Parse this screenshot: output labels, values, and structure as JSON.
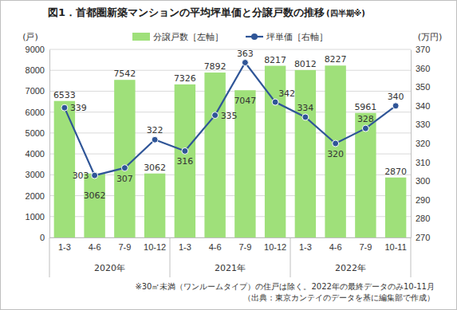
{
  "chart_data": {
    "type": "bar",
    "title": "図1．首都圏新築マンションの平均坪単価と分譲戸数の推移",
    "subtitle": "(四半期※)",
    "categories": [
      "1-3",
      "4-6",
      "7-9",
      "10-12",
      "1-3",
      "4-6",
      "7-9",
      "10-12",
      "1-3",
      "4-6",
      "7-9",
      "10-11"
    ],
    "x_groups": [
      "2020年",
      "2021年",
      "2022年"
    ],
    "ylabel": "(戸)",
    "y2label": "(万円)",
    "ylim": [
      0,
      9000
    ],
    "yticks": [
      0,
      1000,
      2000,
      3000,
      4000,
      5000,
      6000,
      7000,
      8000,
      9000
    ],
    "y2lim": [
      270,
      370
    ],
    "y2ticks": [
      270,
      280,
      290,
      300,
      310,
      320,
      330,
      340,
      350,
      360,
      370
    ],
    "grid": true,
    "legend": "top",
    "data_labels": true,
    "series": [
      {
        "name": "分譲戸数［左軸］",
        "type": "bar",
        "color": "#9fe07a",
        "values": [
          6533,
          3062,
          7542,
          3062,
          7326,
          7892,
          7047,
          8217,
          8012,
          8227,
          5961,
          2870
        ]
      },
      {
        "name": "坪単価［右軸］",
        "type": "line",
        "axis": "y2",
        "color": "#2f5597",
        "marker": "circle",
        "values": [
          339,
          303,
          307,
          322,
          316,
          335,
          363,
          342,
          334,
          320,
          328,
          340
        ]
      }
    ],
    "notes": [
      "※30㎡未満（ワンルームタイプ）の住戸は除く。2022年の最終データのみ10-11月",
      "（出典：東京カンテイのデータを基に編集部で作成）"
    ]
  }
}
